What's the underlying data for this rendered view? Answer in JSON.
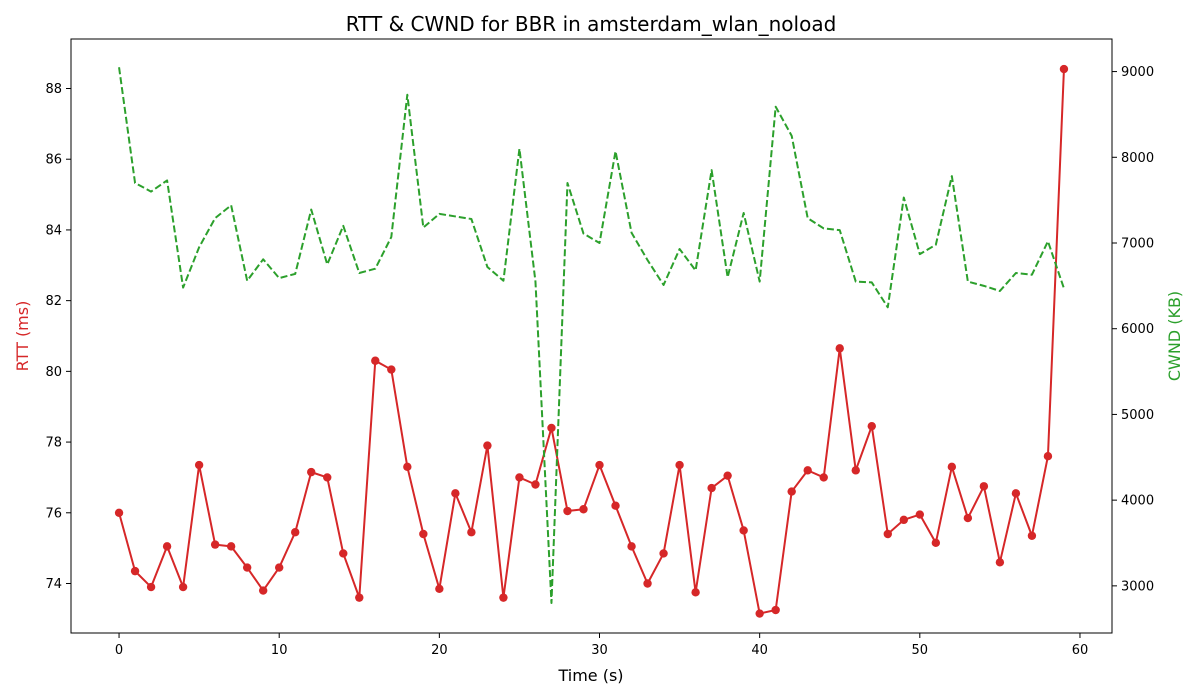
{
  "chart_data": {
    "type": "line",
    "title": "RTT & CWND for BBR in amsterdam_wlan_noload",
    "xlabel": "Time (s)",
    "ylabel_left": "RTT (ms)",
    "ylabel_right": "CWND (KB)",
    "xlim": [
      -3,
      62
    ],
    "ylim_left": [
      72.6,
      89.4
    ],
    "ylim_right": [
      2450,
      9380
    ],
    "x_ticks": [
      0,
      10,
      20,
      30,
      40,
      50,
      60
    ],
    "y_left_ticks": [
      74,
      76,
      78,
      80,
      82,
      84,
      86,
      88
    ],
    "y_right_ticks": [
      3000,
      4000,
      5000,
      6000,
      7000,
      8000,
      9000
    ],
    "grid": false,
    "x": [
      0,
      1,
      2,
      3,
      4,
      5,
      6,
      7,
      8,
      9,
      10,
      11,
      12,
      13,
      14,
      15,
      16,
      17,
      18,
      19,
      20,
      21,
      22,
      23,
      24,
      25,
      26,
      27,
      28,
      29,
      30,
      31,
      32,
      33,
      34,
      35,
      36,
      37,
      38,
      39,
      40,
      41,
      42,
      43,
      44,
      45,
      46,
      47,
      48,
      49,
      50,
      51,
      52,
      53,
      54,
      55,
      56,
      57,
      58,
      59
    ],
    "series": [
      {
        "axis": "left",
        "color": "#d62728",
        "style": "solid-markers",
        "values": [
          76.0,
          74.35,
          73.9,
          75.05,
          73.9,
          77.35,
          75.1,
          75.05,
          74.45,
          73.8,
          74.45,
          75.45,
          77.15,
          77.0,
          74.85,
          73.6,
          80.3,
          80.05,
          77.3,
          75.4,
          73.85,
          76.55,
          75.45,
          77.9,
          73.6,
          77.0,
          76.8,
          78.4,
          76.05,
          76.1,
          77.35,
          76.2,
          75.05,
          74.0,
          74.85,
          77.35,
          73.75,
          76.7,
          77.05,
          75.5,
          73.15,
          73.25,
          76.6,
          77.2,
          77.0,
          80.65,
          77.2,
          78.45,
          75.4,
          75.8,
          75.95,
          75.15,
          77.3,
          75.85,
          76.75,
          74.6,
          76.55,
          75.35,
          77.6,
          88.55
        ]
      },
      {
        "axis": "right",
        "color": "#2ca02c",
        "style": "dashed",
        "values": [
          9050,
          7700,
          7600,
          7730,
          6480,
          6950,
          7290,
          7440,
          6560,
          6810,
          6590,
          6640,
          7390,
          6750,
          7200,
          6650,
          6700,
          7070,
          8730,
          7180,
          7340,
          7310,
          7280,
          6720,
          6560,
          8100,
          6550,
          2800,
          7700,
          7110,
          7000,
          8070,
          7120,
          6800,
          6510,
          6930,
          6680,
          7850,
          6600,
          7350,
          6550,
          8590,
          8250,
          7290,
          7170,
          7150,
          6550,
          6540,
          6250,
          7530,
          6870,
          6980,
          7780,
          6550,
          6500,
          6440,
          6650,
          6630,
          7020,
          6470
        ]
      }
    ]
  }
}
